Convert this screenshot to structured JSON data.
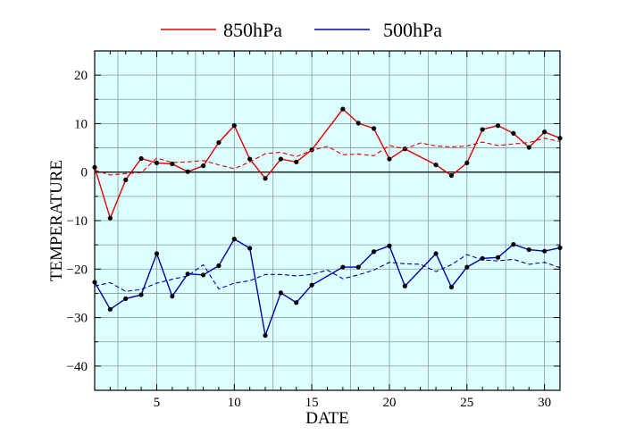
{
  "chart_data": {
    "type": "line",
    "xlabel": "DATE",
    "ylabel": "TEMPERATURE",
    "xlim": [
      1,
      31
    ],
    "ylim": [
      -45,
      25
    ],
    "x_ticks": [
      5,
      10,
      15,
      20,
      25,
      30
    ],
    "y_ticks": [
      20,
      10,
      0,
      -10,
      -20,
      -30,
      -40
    ],
    "grid": true,
    "plot_background": "#ddffff",
    "legend": {
      "position": "top",
      "entries": [
        {
          "label": "850hPa",
          "color": "#dd0000"
        },
        {
          "label": "500hPa",
          "color": "#0000aa"
        }
      ]
    },
    "series": [
      {
        "name": "850hPa",
        "color": "#dd0000",
        "style": "solid",
        "markers": true,
        "points": [
          [
            1,
            1
          ],
          [
            2,
            -9.5
          ],
          [
            3,
            -1.6
          ],
          [
            4,
            2.8
          ],
          [
            5,
            1.9
          ],
          [
            6,
            1.7
          ],
          [
            7,
            0.1
          ],
          [
            8,
            1.3
          ],
          [
            9,
            6.1
          ],
          [
            10,
            9.6
          ],
          [
            11,
            2.7
          ],
          [
            12,
            -1.3
          ],
          [
            13,
            2.7
          ],
          [
            14,
            2.1
          ],
          [
            15,
            4.6
          ],
          [
            17,
            13
          ],
          [
            18,
            10.1
          ],
          [
            19,
            9
          ],
          [
            20,
            2.7
          ],
          [
            21,
            4.8
          ],
          [
            23,
            1.5
          ],
          [
            24,
            -0.7
          ],
          [
            25,
            1.9
          ],
          [
            26,
            8.8
          ],
          [
            27,
            9.6
          ],
          [
            28,
            8
          ],
          [
            29,
            5.1
          ],
          [
            30,
            8.3
          ],
          [
            31,
            7
          ]
        ]
      },
      {
        "color": "#dd0000",
        "style": "dashed",
        "markers": false,
        "points": [
          [
            1,
            0.4
          ],
          [
            2,
            -0.6
          ],
          [
            3,
            -0.3
          ],
          [
            4,
            -0.1
          ],
          [
            5,
            2.9
          ],
          [
            6,
            2.0
          ],
          [
            7,
            2.1
          ],
          [
            8,
            2.4
          ],
          [
            9,
            1.5
          ],
          [
            10,
            0.7
          ],
          [
            11,
            2.1
          ],
          [
            12,
            3.8
          ],
          [
            13,
            4.1
          ],
          [
            14,
            3.2
          ],
          [
            15,
            4.5
          ],
          [
            16,
            5.3
          ],
          [
            17,
            3.6
          ],
          [
            18,
            3.7
          ],
          [
            19,
            3.4
          ],
          [
            20,
            5.5
          ],
          [
            21,
            4.8
          ],
          [
            22,
            6.0
          ],
          [
            23,
            5.4
          ],
          [
            24,
            5.2
          ],
          [
            25,
            5.4
          ],
          [
            26,
            6.2
          ],
          [
            27,
            5.5
          ],
          [
            28,
            5.8
          ],
          [
            29,
            6.1
          ],
          [
            30,
            7.0
          ],
          [
            31,
            6.3
          ]
        ]
      },
      {
        "name": "500hPa",
        "color": "#0000aa",
        "style": "solid",
        "markers": true,
        "points": [
          [
            1,
            -22.7
          ],
          [
            2,
            -28.3
          ],
          [
            3,
            -26.1
          ],
          [
            4,
            -25.3
          ],
          [
            5,
            -16.8
          ],
          [
            6,
            -25.6
          ],
          [
            7,
            -21
          ],
          [
            8,
            -21.2
          ],
          [
            9,
            -19.3
          ],
          [
            10,
            -13.8
          ],
          [
            11,
            -15.7
          ],
          [
            12,
            -33.7
          ],
          [
            13,
            -24.9
          ],
          [
            14,
            -26.9
          ],
          [
            15,
            -23.3
          ],
          [
            17,
            -19.6
          ],
          [
            18,
            -19.6
          ],
          [
            19,
            -16.4
          ],
          [
            20,
            -15.2
          ],
          [
            21,
            -23.5
          ],
          [
            23,
            -16.8
          ],
          [
            24,
            -23.7
          ],
          [
            25,
            -19.6
          ],
          [
            26,
            -17.8
          ],
          [
            27,
            -17.6
          ],
          [
            28,
            -14.9
          ],
          [
            29,
            -16
          ],
          [
            30,
            -16.3
          ],
          [
            31,
            -15.6
          ]
        ]
      },
      {
        "color": "#0000aa",
        "style": "dashed",
        "markers": false,
        "points": [
          [
            1,
            -23.5
          ],
          [
            2,
            -22.8
          ],
          [
            3,
            -24.6
          ],
          [
            4,
            -24.2
          ],
          [
            5,
            -22.9
          ],
          [
            6,
            -22.1
          ],
          [
            7,
            -21.4
          ],
          [
            8,
            -19.1
          ],
          [
            9,
            -24.1
          ],
          [
            10,
            -22.9
          ],
          [
            11,
            -22.4
          ],
          [
            12,
            -21.1
          ],
          [
            13,
            -21.1
          ],
          [
            14,
            -21.4
          ],
          [
            15,
            -21.1
          ],
          [
            16,
            -20.2
          ],
          [
            17,
            -22.0
          ],
          [
            18,
            -21.2
          ],
          [
            19,
            -20.2
          ],
          [
            20,
            -18.6
          ],
          [
            21,
            -18.9
          ],
          [
            22,
            -19.0
          ],
          [
            23,
            -20.5
          ],
          [
            24,
            -19.1
          ],
          [
            25,
            -17.0
          ],
          [
            26,
            -18.1
          ],
          [
            27,
            -18.3
          ],
          [
            28,
            -18.0
          ],
          [
            29,
            -19.0
          ],
          [
            30,
            -18.6
          ],
          [
            31,
            -19.7
          ]
        ]
      }
    ]
  }
}
